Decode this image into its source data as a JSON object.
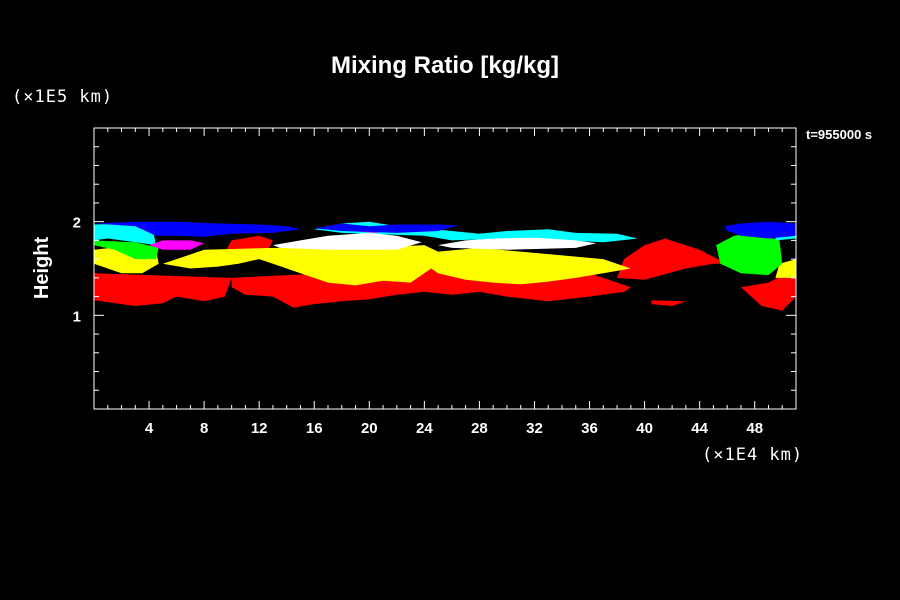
{
  "chart_data": {
    "type": "heatmap",
    "title": "Mixing Ratio [kg/kg]",
    "ylabel": "Height",
    "y_unit": "(×1E5 km)",
    "x_unit": "(×1E4 km)",
    "time_label": "t=955000 s",
    "xlim": [
      0,
      51
    ],
    "ylim": [
      0,
      3
    ],
    "x_ticks": [
      4,
      8,
      12,
      16,
      20,
      24,
      28,
      32,
      36,
      40,
      44,
      48
    ],
    "x_tick_labels": [
      "4",
      "8",
      "12",
      "16",
      "20",
      "24",
      "28",
      "32",
      "36",
      "40",
      "44",
      "48"
    ],
    "y_ticks": [
      1,
      2
    ],
    "y_tick_labels": [
      "1",
      "2"
    ],
    "colors": {
      "level_1": "#ff0000",
      "level_2": "#ffff00",
      "level_3": "#00ff00",
      "level_4": "#00ffff",
      "level_5": "#ffffff",
      "level_6": "#ff00ff",
      "level_7": "#0000ff"
    },
    "regions": [
      {
        "level": "level_1",
        "points": [
          [
            0,
            1.16
          ],
          [
            2,
            1.12
          ],
          [
            3,
            1.1
          ],
          [
            5,
            1.13
          ],
          [
            6,
            1.2
          ],
          [
            8,
            1.15
          ],
          [
            9.5,
            1.2
          ],
          [
            10,
            1.4
          ],
          [
            0,
            1.45
          ]
        ]
      },
      {
        "level": "level_1",
        "points": [
          [
            10,
            1.3
          ],
          [
            11,
            1.22
          ],
          [
            13,
            1.2
          ],
          [
            14.5,
            1.08
          ],
          [
            16,
            1.12
          ],
          [
            18,
            1.15
          ],
          [
            20,
            1.17
          ],
          [
            22,
            1.22
          ],
          [
            24,
            1.25
          ],
          [
            26,
            1.22
          ],
          [
            28,
            1.25
          ],
          [
            30,
            1.2
          ],
          [
            33,
            1.15
          ],
          [
            36,
            1.2
          ],
          [
            38.5,
            1.25
          ],
          [
            39,
            1.3
          ],
          [
            36,
            1.45
          ],
          [
            24,
            1.5
          ],
          [
            10,
            1.4
          ]
        ]
      },
      {
        "level": "level_1",
        "points": [
          [
            38,
            1.4
          ],
          [
            40,
            1.38
          ],
          [
            43,
            1.5
          ],
          [
            45,
            1.55
          ],
          [
            46,
            1.55
          ],
          [
            44,
            1.7
          ],
          [
            41.5,
            1.82
          ],
          [
            40,
            1.75
          ],
          [
            38.5,
            1.6
          ]
        ]
      },
      {
        "level": "level_1",
        "points": [
          [
            40.5,
            1.16
          ],
          [
            43,
            1.15
          ],
          [
            42,
            1.1
          ],
          [
            40.5,
            1.12
          ]
        ]
      },
      {
        "level": "level_1",
        "points": [
          [
            47,
            1.3
          ],
          [
            48.5,
            1.1
          ],
          [
            50,
            1.05
          ],
          [
            51,
            1.2
          ],
          [
            51,
            1.5
          ],
          [
            49,
            1.35
          ]
        ]
      },
      {
        "level": "level_1",
        "points": [
          [
            10,
            1.8
          ],
          [
            12,
            1.85
          ],
          [
            13,
            1.8
          ],
          [
            12.5,
            1.65
          ],
          [
            11,
            1.6
          ],
          [
            9.5,
            1.67
          ]
        ]
      },
      {
        "level": "level_2",
        "points": [
          [
            0,
            1.55
          ],
          [
            2,
            1.45
          ],
          [
            3.5,
            1.45
          ],
          [
            4.7,
            1.55
          ],
          [
            4.5,
            1.7
          ],
          [
            3,
            1.75
          ],
          [
            0,
            1.7
          ]
        ]
      },
      {
        "level": "level_2",
        "points": [
          [
            5,
            1.55
          ],
          [
            7,
            1.5
          ],
          [
            9,
            1.52
          ],
          [
            10.5,
            1.55
          ],
          [
            12,
            1.6
          ],
          [
            13,
            1.55
          ],
          [
            14,
            1.5
          ],
          [
            15,
            1.45
          ],
          [
            17,
            1.35
          ],
          [
            19,
            1.32
          ],
          [
            21,
            1.37
          ],
          [
            23,
            1.35
          ],
          [
            24.5,
            1.5
          ],
          [
            25,
            1.45
          ],
          [
            27,
            1.38
          ],
          [
            29,
            1.35
          ],
          [
            31,
            1.33
          ],
          [
            33,
            1.36
          ],
          [
            35,
            1.4
          ],
          [
            37,
            1.45
          ],
          [
            39,
            1.5
          ],
          [
            37,
            1.6
          ],
          [
            28,
            1.72
          ],
          [
            25,
            1.68
          ],
          [
            24,
            1.75
          ],
          [
            20,
            1.72
          ],
          [
            13,
            1.72
          ],
          [
            8,
            1.7
          ]
        ]
      },
      {
        "level": "level_2",
        "points": [
          [
            49.5,
            1.4
          ],
          [
            51,
            1.4
          ],
          [
            51,
            1.6
          ],
          [
            49.8,
            1.55
          ]
        ]
      },
      {
        "level": "level_3",
        "points": [
          [
            0,
            1.75
          ],
          [
            1.5,
            1.7
          ],
          [
            3,
            1.6
          ],
          [
            4.5,
            1.6
          ],
          [
            4.7,
            1.72
          ],
          [
            3,
            1.78
          ],
          [
            0,
            1.8
          ]
        ]
      },
      {
        "level": "level_3",
        "points": [
          [
            45.5,
            1.55
          ],
          [
            47,
            1.45
          ],
          [
            49,
            1.43
          ],
          [
            50,
            1.55
          ],
          [
            49.8,
            1.8
          ],
          [
            48,
            1.88
          ],
          [
            46.5,
            1.85
          ],
          [
            45.2,
            1.75
          ]
        ]
      },
      {
        "level": "level_4",
        "points": [
          [
            0,
            1.8
          ],
          [
            1,
            1.82
          ],
          [
            3,
            1.78
          ],
          [
            4.5,
            1.75
          ],
          [
            4.3,
            1.9
          ],
          [
            2.5,
            1.98
          ],
          [
            0,
            1.97
          ]
        ]
      },
      {
        "level": "level_4",
        "points": [
          [
            49.5,
            1.8
          ],
          [
            51,
            1.82
          ],
          [
            51,
            1.92
          ],
          [
            49,
            1.95
          ],
          [
            49.5,
            1.85
          ]
        ]
      },
      {
        "level": "level_4",
        "points": [
          [
            16,
            1.92
          ],
          [
            18,
            1.98
          ],
          [
            20,
            2.0
          ],
          [
            22,
            1.95
          ],
          [
            24,
            1.93
          ],
          [
            26,
            1.9
          ],
          [
            28,
            1.87
          ],
          [
            30,
            1.9
          ],
          [
            33,
            1.92
          ],
          [
            35,
            1.88
          ],
          [
            38,
            1.87
          ],
          [
            39.5,
            1.82
          ],
          [
            37,
            1.78
          ],
          [
            34,
            1.8
          ],
          [
            30,
            1.82
          ],
          [
            26,
            1.8
          ],
          [
            24,
            1.85
          ],
          [
            18,
            1.88
          ]
        ]
      },
      {
        "level": "level_5",
        "points": [
          [
            13,
            1.75
          ],
          [
            15,
            1.8
          ],
          [
            17,
            1.85
          ],
          [
            20,
            1.88
          ],
          [
            22,
            1.85
          ],
          [
            23.8,
            1.78
          ],
          [
            22,
            1.7
          ],
          [
            17,
            1.7
          ],
          [
            13.5,
            1.72
          ]
        ]
      },
      {
        "level": "level_5",
        "points": [
          [
            25,
            1.75
          ],
          [
            27,
            1.8
          ],
          [
            29,
            1.82
          ],
          [
            32,
            1.83
          ],
          [
            35,
            1.8
          ],
          [
            36.5,
            1.77
          ],
          [
            35,
            1.72
          ],
          [
            30,
            1.7
          ],
          [
            26,
            1.72
          ]
        ]
      },
      {
        "level": "level_6",
        "points": [
          [
            4,
            1.75
          ],
          [
            5,
            1.8
          ],
          [
            7,
            1.8
          ],
          [
            8,
            1.77
          ],
          [
            7,
            1.7
          ],
          [
            5,
            1.7
          ]
        ]
      },
      {
        "level": "level_6",
        "points": [
          [
            18.5,
            1.9
          ],
          [
            20,
            1.94
          ],
          [
            21.5,
            1.92
          ],
          [
            20.5,
            1.88
          ]
        ]
      },
      {
        "level": "level_7",
        "points": [
          [
            0,
            1.98
          ],
          [
            3,
            2.0
          ],
          [
            6,
            2.0
          ],
          [
            9,
            1.98
          ],
          [
            12,
            1.97
          ],
          [
            14,
            1.95
          ],
          [
            15,
            1.92
          ],
          [
            13,
            1.88
          ],
          [
            10,
            1.87
          ],
          [
            8,
            1.84
          ],
          [
            6,
            1.85
          ],
          [
            4.5,
            1.85
          ],
          [
            3,
            1.95
          ]
        ]
      },
      {
        "level": "level_7",
        "points": [
          [
            16,
            1.93
          ],
          [
            18,
            1.98
          ],
          [
            20,
            1.95
          ],
          [
            22,
            1.97
          ],
          [
            25,
            1.97
          ],
          [
            26.5,
            1.96
          ],
          [
            25,
            1.9
          ],
          [
            22,
            1.88
          ],
          [
            18,
            1.9
          ]
        ]
      },
      {
        "level": "level_7",
        "points": [
          [
            45.8,
            1.95
          ],
          [
            47,
            1.98
          ],
          [
            49,
            2.0
          ],
          [
            51,
            1.98
          ],
          [
            51,
            1.85
          ],
          [
            49,
            1.82
          ],
          [
            47,
            1.85
          ],
          [
            46,
            1.9
          ]
        ]
      }
    ]
  }
}
